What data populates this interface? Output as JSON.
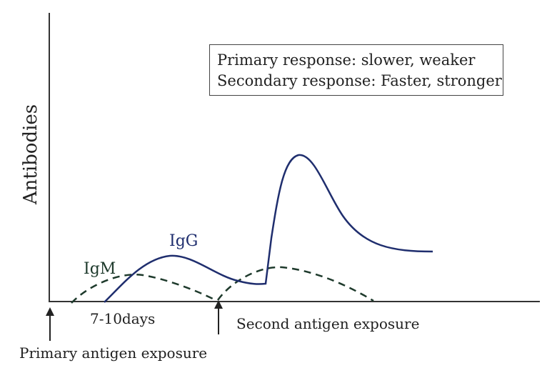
{
  "axes": {
    "y_label": "Antibodies"
  },
  "legend": {
    "line1": "Primary response: slower, weaker",
    "line2": "Secondary response: Faster, stronger"
  },
  "curves": {
    "igg_label": "IgG",
    "igm_label": "IgM",
    "igg_color": "#1f2e6e",
    "igm_color": "#1e3a2c",
    "igg_style": "solid",
    "igm_style": "dashed"
  },
  "annotations": {
    "primary_exposure": "Primary antigen exposure",
    "second_exposure": "Second antigen exposure",
    "lag_time": "7-10days"
  }
}
